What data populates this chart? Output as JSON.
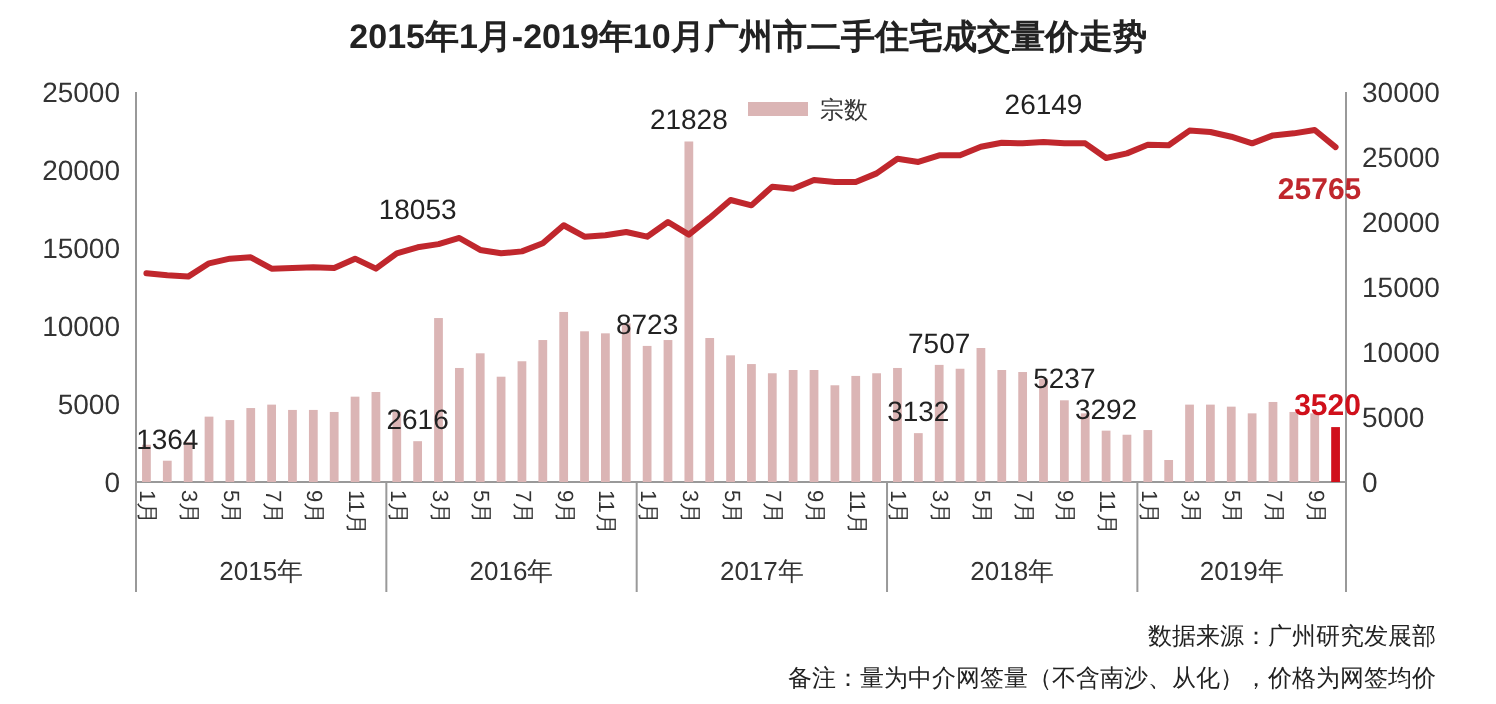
{
  "chart_data": {
    "type": "bar",
    "title": "2015年1月-2019年10月广州市二手住宅成交量价走势",
    "categories": [
      "1月",
      null,
      "3月",
      null,
      "5月",
      null,
      "7月",
      null,
      "9月",
      null,
      "11月",
      null,
      "1月",
      null,
      "3月",
      null,
      "5月",
      null,
      "7月",
      null,
      "9月",
      null,
      "11月",
      null,
      "1月",
      null,
      "3月",
      null,
      "5月",
      null,
      "7月",
      null,
      "9月",
      null,
      "11月",
      null,
      "1月",
      null,
      "3月",
      null,
      "5月",
      null,
      "7月",
      null,
      "9月",
      null,
      "11月",
      null,
      "1月",
      null,
      "3月",
      null,
      "5月",
      null,
      "7月",
      null,
      "9月",
      null
    ],
    "series": [
      {
        "name": "宗数",
        "color": "#dbb5b5",
        "colors": [
          "#dbb5b5",
          "#dbb5b5",
          "#dbb5b5",
          "#dbb5b5",
          "#dbb5b5",
          "#dbb5b5",
          "#dbb5b5",
          "#dbb5b5",
          "#dbb5b5",
          "#dbb5b5",
          "#dbb5b5",
          "#dbb5b5",
          "#dbb5b5",
          "#dbb5b5",
          "#dbb5b5",
          "#dbb5b5",
          "#dbb5b5",
          "#dbb5b5",
          "#dbb5b5",
          "#dbb5b5",
          "#dbb5b5",
          "#dbb5b5",
          "#dbb5b5",
          "#dbb5b5",
          "#dbb5b5",
          "#dbb5b5",
          "#dbb5b5",
          "#dbb5b5",
          "#dbb5b5",
          "#dbb5b5",
          "#dbb5b5",
          "#dbb5b5",
          "#dbb5b5",
          "#dbb5b5",
          "#dbb5b5",
          "#dbb5b5",
          "#dbb5b5",
          "#dbb5b5",
          "#dbb5b5",
          "#dbb5b5",
          "#dbb5b5",
          "#dbb5b5",
          "#dbb5b5",
          "#dbb5b5",
          "#dbb5b5",
          "#dbb5b5",
          "#dbb5b5",
          "#dbb5b5",
          "#dbb5b5",
          "#dbb5b5",
          "#dbb5b5",
          "#dbb5b5",
          "#dbb5b5",
          "#dbb5b5",
          "#dbb5b5",
          "#dbb5b5",
          "#dbb5b5",
          "#d0101b"
        ],
        "values": [
          2390,
          1364,
          2560,
          4190,
          3970,
          4740,
          4960,
          4620,
          4620,
          4490,
          5470,
          5770,
          4500,
          2616,
          10510,
          7310,
          8250,
          6750,
          7740,
          9100,
          10900,
          9660,
          9530,
          10170,
          8723,
          9100,
          21828,
          9230,
          8120,
          7560,
          6970,
          7180,
          7180,
          6200,
          6800,
          6970,
          7310,
          3132,
          7507,
          7260,
          8590,
          7180,
          7050,
          6620,
          5237,
          4400,
          3292,
          3030,
          3330,
          1410,
          4960,
          4960,
          4830,
          4400,
          5130,
          4490,
          4400,
          3520
        ],
        "value_labels": [
          null,
          "1364",
          null,
          null,
          null,
          null,
          null,
          null,
          null,
          null,
          null,
          null,
          null,
          "2616",
          null,
          null,
          null,
          null,
          null,
          null,
          null,
          null,
          null,
          null,
          "8723",
          null,
          "21828",
          null,
          null,
          null,
          null,
          null,
          null,
          null,
          null,
          null,
          null,
          "3132",
          "7507",
          null,
          null,
          null,
          null,
          null,
          "5237",
          null,
          "3292",
          null,
          null,
          null,
          null,
          null,
          null,
          null,
          null,
          null,
          null,
          "3520"
        ]
      },
      {
        "type": "line",
        "axis": "y2",
        "color": "#c0272d",
        "values": [
          16050,
          15900,
          15800,
          16820,
          17180,
          17280,
          16410,
          16460,
          16510,
          16460,
          17180,
          16410,
          17590,
          18053,
          18300,
          18770,
          17850,
          17590,
          17740,
          18360,
          19750,
          18870,
          18980,
          19230,
          18870,
          20000,
          19030,
          20310,
          21690,
          21280,
          22720,
          22560,
          23230,
          23080,
          23080,
          23740,
          24870,
          24620,
          25130,
          25130,
          25790,
          26100,
          26050,
          26149,
          26050,
          26050,
          24920,
          25280,
          25950,
          25900,
          27030,
          26920,
          26560,
          26050,
          26660,
          26820,
          27080,
          25765
        ],
        "value_labels": [
          null,
          null,
          null,
          null,
          null,
          null,
          null,
          null,
          null,
          null,
          null,
          null,
          null,
          "18053",
          null,
          null,
          null,
          null,
          null,
          null,
          null,
          null,
          null,
          null,
          null,
          null,
          null,
          null,
          null,
          null,
          null,
          null,
          null,
          null,
          null,
          null,
          null,
          null,
          null,
          null,
          null,
          null,
          null,
          "26149",
          null,
          null,
          null,
          null,
          null,
          null,
          null,
          null,
          null,
          null,
          null,
          null,
          null,
          "25765"
        ]
      }
    ],
    "ylim": [
      0,
      25000
    ],
    "yticks": [
      0,
      5000,
      10000,
      15000,
      20000,
      25000
    ],
    "y2lim": [
      0,
      30000
    ],
    "y2ticks": [
      0,
      5000,
      10000,
      15000,
      20000,
      25000,
      30000
    ],
    "legend": "top",
    "grid": false,
    "annotations": [
      "2015年",
      "2016年",
      "2017年",
      "2018年",
      "2019年",
      "数据来源：广州研究发展部",
      "备注：量为中介网签量（不含南沙、从化），价格为网签均价"
    ]
  }
}
